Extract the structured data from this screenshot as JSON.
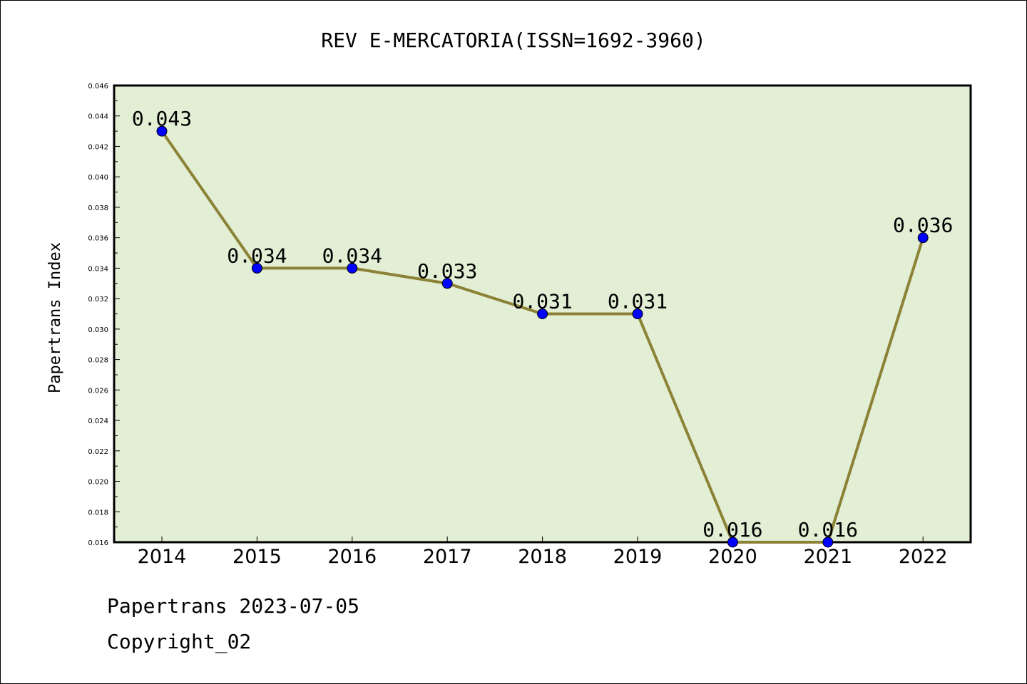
{
  "footer": {
    "line1": "Papertrans 2023-07-05",
    "line2": "Copyright_02"
  },
  "chart_data": {
    "type": "line",
    "title": "REV E-MERCATORIA(ISSN=1692-3960)",
    "xlabel": "",
    "ylabel": "Papertrans Index",
    "categories": [
      "2014",
      "2015",
      "2016",
      "2017",
      "2018",
      "2019",
      "2020",
      "2021",
      "2022"
    ],
    "series": [
      {
        "values": [
          0.043,
          0.034,
          0.034,
          0.033,
          0.031,
          0.031,
          0.016,
          0.016,
          0.036
        ],
        "labels": [
          "0.043",
          "0.034",
          "0.034",
          "0.033",
          "0.031",
          "0.031",
          "0.016",
          "0.016",
          "0.036"
        ]
      }
    ],
    "ylim": [
      0.016,
      0.046
    ],
    "yticks": [
      "0.016",
      "0.018",
      "0.020",
      "0.022",
      "0.024",
      "0.026",
      "0.028",
      "0.030",
      "0.032",
      "0.034",
      "0.036",
      "0.038",
      "0.040",
      "0.042",
      "0.044",
      "0.046"
    ],
    "grid": false,
    "colors": {
      "plot_background": "#e2efd5",
      "line": "#8b8236",
      "marker": "#0000ff"
    }
  }
}
